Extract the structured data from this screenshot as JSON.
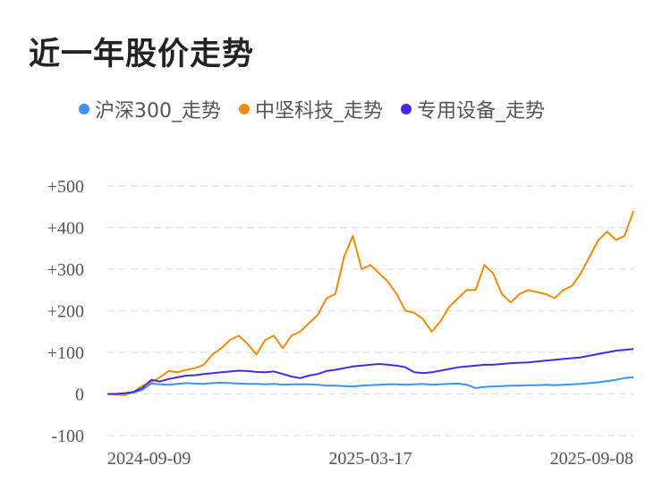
{
  "title": "近一年股价走势",
  "chart_data": {
    "type": "line",
    "title": "近一年股价走势",
    "xlabel": "",
    "ylabel": "",
    "ylim": [
      -100,
      500
    ],
    "y_ticks": [
      -100,
      0,
      100,
      200,
      300,
      400,
      500
    ],
    "y_tick_labels": [
      "-100",
      "0",
      "+100",
      "+200",
      "+300",
      "+400",
      "+500"
    ],
    "x_tick_labels": [
      "2024-09-09",
      "2025-03-17",
      "2025-09-08"
    ],
    "legend_position": "top",
    "grid": true,
    "n_points": 61,
    "series": [
      {
        "name": "沪深300_走势",
        "color": "#3d94f0",
        "values": [
          0,
          0,
          1,
          3,
          10,
          25,
          23,
          22,
          24,
          26,
          25,
          24,
          26,
          27,
          26,
          25,
          24,
          24,
          23,
          24,
          22,
          23,
          23,
          23,
          22,
          20,
          20,
          19,
          18,
          20,
          21,
          22,
          23,
          23,
          22,
          23,
          24,
          22,
          23,
          24,
          25,
          22,
          14,
          17,
          18,
          19,
          20,
          20,
          21,
          21,
          22,
          21,
          22,
          23,
          24,
          26,
          28,
          31,
          34,
          38,
          40
        ]
      },
      {
        "name": "中坚科技_走势",
        "color": "#f08c0c",
        "values": [
          0,
          -2,
          -3,
          5,
          20,
          28,
          40,
          55,
          52,
          58,
          62,
          70,
          95,
          110,
          130,
          140,
          120,
          95,
          130,
          140,
          110,
          140,
          150,
          170,
          190,
          230,
          240,
          330,
          380,
          300,
          310,
          290,
          270,
          240,
          200,
          195,
          180,
          150,
          175,
          210,
          230,
          250,
          250,
          310,
          290,
          240,
          220,
          240,
          250,
          245,
          240,
          230,
          250,
          260,
          290,
          330,
          370,
          390,
          370,
          380,
          440
        ]
      },
      {
        "name": "专用设备_走势",
        "color": "#4a27ea",
        "values": [
          0,
          0,
          2,
          5,
          14,
          34,
          30,
          36,
          40,
          44,
          45,
          48,
          50,
          52,
          54,
          56,
          55,
          53,
          52,
          54,
          48,
          42,
          38,
          44,
          48,
          55,
          58,
          62,
          66,
          68,
          70,
          72,
          70,
          68,
          64,
          52,
          50,
          52,
          56,
          60,
          64,
          66,
          68,
          70,
          70,
          72,
          74,
          75,
          76,
          78,
          80,
          82,
          84,
          86,
          88,
          92,
          96,
          100,
          104,
          106,
          108
        ]
      }
    ]
  }
}
